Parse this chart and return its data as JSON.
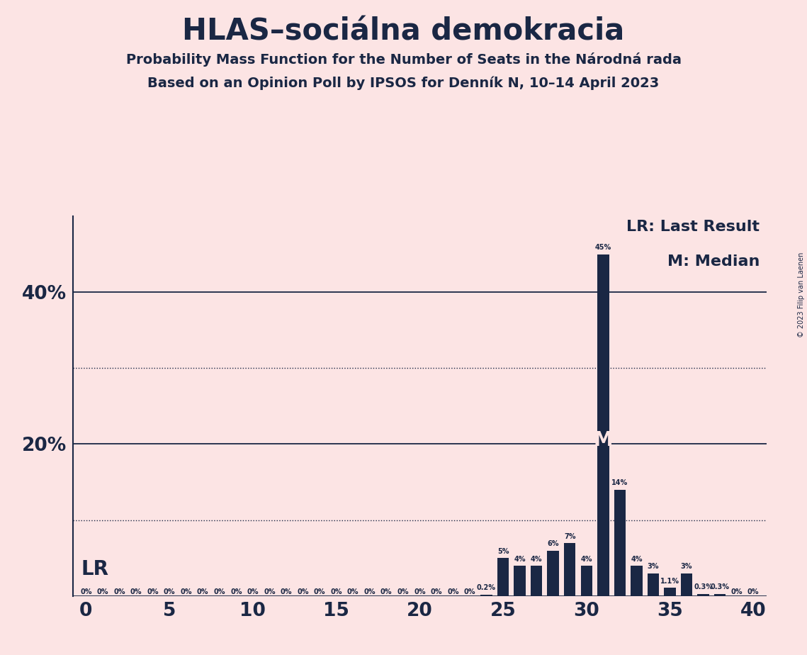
{
  "title": "HLAS–sociálna demokracia",
  "subtitle1": "Probability Mass Function for the Number of Seats in the Národná rada",
  "subtitle2": "Based on an Opinion Poll by IPSOS for Denník N, 10–14 April 2023",
  "copyright": "© 2023 Filip van Laenen",
  "background_color": "#fce4e4",
  "bar_color": "#1a2744",
  "title_color": "#1a2744",
  "ylim": [
    0,
    0.5
  ],
  "ytick_positions": [
    0.0,
    0.1,
    0.2,
    0.3,
    0.4,
    0.5
  ],
  "ytick_labels": [
    "",
    "",
    "20%",
    "",
    "40%",
    ""
  ],
  "solid_gridlines": [
    0.0,
    0.2,
    0.4
  ],
  "dotted_gridlines": [
    0.1,
    0.3
  ],
  "seats": [
    0,
    1,
    2,
    3,
    4,
    5,
    6,
    7,
    8,
    9,
    10,
    11,
    12,
    13,
    14,
    15,
    16,
    17,
    18,
    19,
    20,
    21,
    22,
    23,
    24,
    25,
    26,
    27,
    28,
    29,
    30,
    31,
    32,
    33,
    34,
    35,
    36,
    37,
    38,
    39,
    40
  ],
  "probabilities": [
    0.0,
    0.0,
    0.0,
    0.0,
    0.0,
    0.0,
    0.0,
    0.0,
    0.0,
    0.0,
    0.0,
    0.0,
    0.0,
    0.0,
    0.0,
    0.0,
    0.0,
    0.0,
    0.0,
    0.0,
    0.0,
    0.0,
    0.0,
    0.0,
    0.002,
    0.05,
    0.04,
    0.04,
    0.06,
    0.07,
    0.04,
    0.45,
    0.14,
    0.04,
    0.03,
    0.011,
    0.03,
    0.003,
    0.003,
    0.0,
    0.0
  ],
  "bar_labels": [
    "0%",
    "0%",
    "0%",
    "0%",
    "0%",
    "0%",
    "0%",
    "0%",
    "0%",
    "0%",
    "0%",
    "0%",
    "0%",
    "0%",
    "0%",
    "0%",
    "0%",
    "0%",
    "0%",
    "0%",
    "0%",
    "0%",
    "0%",
    "0%",
    "0.2%",
    "5%",
    "4%",
    "4%",
    "6%",
    "7%",
    "4%",
    "45%",
    "14%",
    "4%",
    "3%",
    "1.1%",
    "3%",
    "0.3%",
    "0.3%",
    "0%",
    "0%"
  ],
  "lr_seat": 0,
  "median_seat": 31,
  "lr_label": "LR",
  "lr_legend": "LR: Last Result",
  "m_legend": "M: Median",
  "title_fontsize": 30,
  "subtitle_fontsize": 14,
  "tick_fontsize": 19,
  "bar_label_fontsize": 7,
  "legend_fontsize": 16,
  "lr_fontsize": 20
}
